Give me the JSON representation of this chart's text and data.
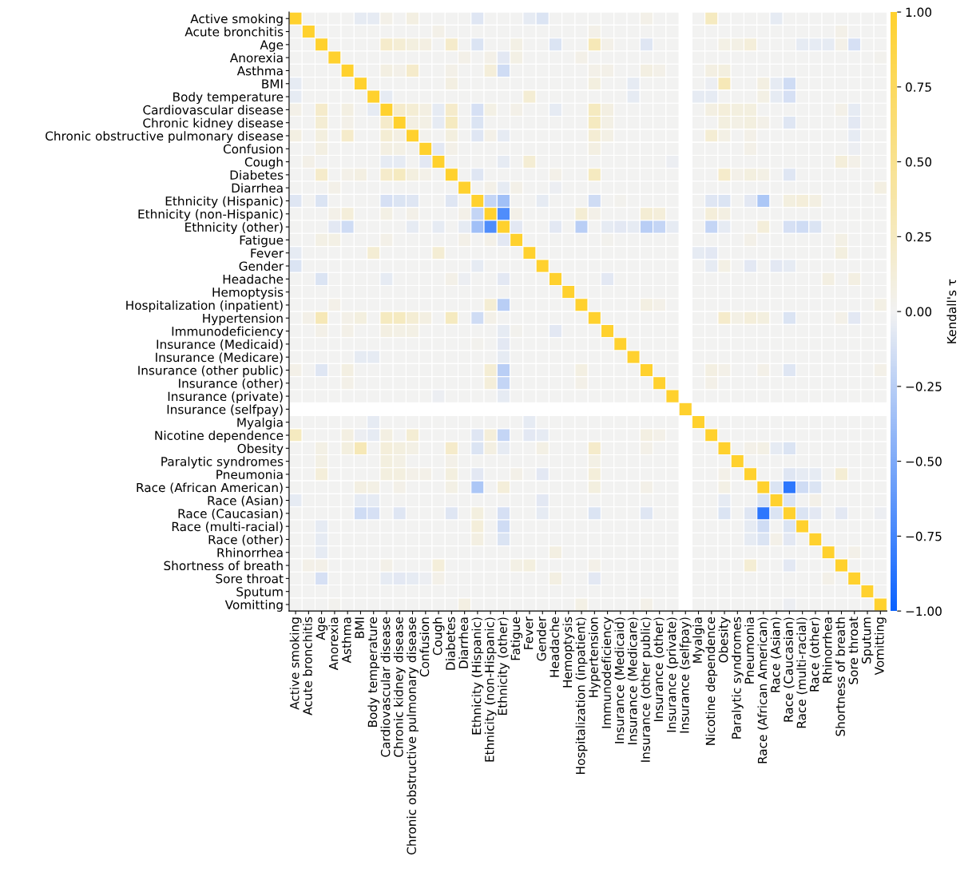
{
  "chart_data": {
    "type": "heatmap",
    "categories": [
      "Active smoking",
      "Acute bronchitis",
      "Age",
      "Anorexia",
      "Asthma",
      "BMI",
      "Body temperature",
      "Cardiovascular disease",
      "Chronic kidney disease",
      "Chronic obstructive pulmonary disease",
      "Confusion",
      "Cough",
      "Diabetes",
      "Diarrhea",
      "Ethnicity (Hispanic)",
      "Ethnicity (non-Hispanic)",
      "Ethnicity (other)",
      "Fatigue",
      "Fever",
      "Gender",
      "Headache",
      "Hemoptysis",
      "Hospitalization (inpatient)",
      "Hypertension",
      "Immunodeficiency",
      "Insurance (Medicaid)",
      "Insurance (Medicare)",
      "Insurance (other public)",
      "Insurance (other)",
      "Insurance (private)",
      "Insurance (selfpay)",
      "Myalgia",
      "Nicotine dependence",
      "Obesity",
      "Paralytic syndromes",
      "Pneumonia",
      "Race (African American)",
      "Race (Asian)",
      "Race (Caucasian)",
      "Race (multi-racial)",
      "Race (other)",
      "Rhinorrhea",
      "Shortness of breath",
      "Sore throat",
      "Sputum",
      "Vomitting"
    ],
    "y_categories": [
      "Active smoking",
      "Acute bronchitis",
      "Age",
      "Anorexia",
      "Asthma",
      "BMI",
      "Body temperature",
      "Cardiovascular disease",
      "Chronic kidney disease",
      "Chronic obstructive pulmonary disease",
      "Confusion",
      "Cough",
      "Diabetes",
      "Diarrhea",
      "Ethnicity (Hispanic)",
      "Ethnicity (non-Hispanic)",
      "Ethnicity (other)",
      "Fatigue",
      "Fever",
      "Gender",
      "Headache",
      "Hemoptysis",
      "Hospitalization (inpatient)",
      "Hypertension",
      "Immunodeficiency",
      "Insurance (Medicaid)",
      "Insurance (Medicare)",
      "Insurance (other public)",
      "Insurance (other)",
      "Insurance (private)",
      "Insurance (selfpay)",
      "Myalgia",
      "Nicotine dependence",
      "Obesity",
      "Paralytic syndromes",
      "Pneumonia",
      "Race (African American)",
      "Race (Asian)",
      "Race (Caucasian)",
      "Race (multi-racial)",
      "Race (other)",
      "Rhinorrhea",
      "Shortness of breath",
      "Sore throat",
      "Sputum",
      "Vomitting"
    ],
    "cells": [
      [
        1,
        0,
        0,
        0,
        0,
        -0.05,
        -0.05,
        0.05,
        0,
        0.08,
        0,
        0,
        0,
        0,
        -0.08,
        0,
        0,
        0,
        -0.05,
        -0.1,
        0,
        0,
        0,
        0,
        0,
        0,
        0,
        0.05,
        0,
        0,
        null,
        0,
        0.25,
        0,
        0,
        0,
        0,
        -0.05,
        0,
        0,
        0,
        0,
        0,
        0,
        0,
        0
      ],
      [
        0,
        1,
        0,
        0,
        0,
        0,
        0,
        0,
        0,
        0,
        0,
        0.05,
        0,
        0,
        0,
        0,
        0,
        0,
        0,
        0,
        0,
        0,
        0,
        0.05,
        0,
        0,
        0,
        0,
        0,
        0,
        null,
        0,
        0,
        0,
        0,
        0,
        0,
        0,
        0,
        0,
        0,
        0,
        0.05,
        0,
        0,
        0
      ],
      [
        0,
        0,
        1,
        0,
        0,
        0,
        0,
        0.2,
        0.15,
        0.1,
        0.08,
        0,
        0.2,
        0,
        -0.1,
        0,
        0,
        0.07,
        0,
        0,
        -0.1,
        0,
        0,
        0.3,
        0.05,
        0,
        0,
        -0.08,
        0,
        0,
        null,
        0,
        0,
        0.07,
        0.07,
        0.12,
        0,
        0,
        0,
        -0.05,
        -0.05,
        -0.05,
        0.05,
        -0.12,
        0,
        0
      ],
      [
        0,
        0,
        0,
        1,
        0,
        0,
        0,
        0,
        0,
        0,
        0,
        0,
        0,
        0.05,
        0,
        0.05,
        -0.07,
        0.07,
        0,
        0,
        0,
        0,
        0.05,
        0,
        0,
        0,
        0,
        0,
        0,
        0,
        null,
        0,
        0,
        0,
        0,
        0,
        0,
        0,
        0,
        0,
        0,
        0,
        0,
        0,
        0,
        0.03
      ],
      [
        0,
        0,
        0,
        0,
        1,
        0,
        0,
        0.08,
        0.05,
        0.2,
        0,
        0,
        0.05,
        0,
        0,
        0.12,
        -0.15,
        0,
        0,
        0,
        0,
        0,
        0,
        0.05,
        0.05,
        0,
        0,
        0.08,
        0.05,
        0,
        null,
        0,
        0.08,
        0.1,
        0,
        0,
        0,
        0,
        0,
        0,
        0,
        0,
        0,
        0,
        0,
        0
      ],
      [
        -0.05,
        0,
        0,
        0,
        0,
        1,
        0,
        0,
        0,
        0,
        0,
        0,
        0.08,
        0,
        0,
        0,
        0,
        0,
        0,
        0,
        0,
        0,
        0,
        0.1,
        0,
        0,
        -0.05,
        0,
        0,
        0,
        null,
        0,
        -0.03,
        0.3,
        0,
        0,
        0.08,
        -0.05,
        -0.15,
        0,
        0,
        0,
        0,
        0,
        0,
        0
      ],
      [
        -0.05,
        0,
        0,
        0,
        0,
        0,
        1,
        -0.05,
        0,
        0,
        0,
        0,
        0,
        0,
        0,
        0,
        0,
        0,
        0.15,
        0,
        0,
        0,
        0,
        0,
        0,
        0,
        -0.05,
        0,
        0,
        0,
        null,
        -0.05,
        -0.05,
        0,
        0,
        0,
        0.07,
        -0.05,
        -0.12,
        0,
        0,
        0,
        0,
        0,
        0,
        0
      ],
      [
        0.05,
        0,
        0.2,
        0,
        0.08,
        0,
        -0.05,
        1,
        0.2,
        0.15,
        0.08,
        -0.05,
        0.2,
        0,
        -0.12,
        0.07,
        0,
        0.05,
        0,
        0,
        -0.05,
        0,
        0,
        0.25,
        0.08,
        0,
        0,
        0,
        0,
        0,
        null,
        0,
        0.08,
        0.12,
        0.1,
        0.1,
        0,
        0,
        0,
        0,
        0,
        0,
        0.05,
        -0.05,
        0,
        0
      ],
      [
        0,
        0,
        0.15,
        0,
        0.05,
        0,
        0,
        0.2,
        1,
        0.08,
        0.07,
        -0.05,
        0.25,
        0,
        -0.1,
        0,
        0,
        0,
        0,
        0,
        0,
        0,
        0,
        0.25,
        0.07,
        0,
        0,
        0,
        0,
        0,
        null,
        0,
        0,
        0.1,
        0.07,
        0.1,
        0.05,
        0,
        -0.08,
        0,
        0,
        0,
        0,
        -0.07,
        0,
        0
      ],
      [
        0.08,
        0,
        0.1,
        0,
        0.2,
        0,
        0,
        0.15,
        0.08,
        1,
        0.03,
        0,
        0.1,
        0,
        -0.08,
        0.05,
        -0.05,
        0,
        0,
        0,
        0,
        0,
        0,
        0.15,
        0.07,
        0,
        0,
        0,
        0,
        0,
        null,
        0,
        0.15,
        0.07,
        0,
        0.05,
        0,
        0,
        0,
        0,
        0,
        0,
        0,
        -0.05,
        0,
        0
      ],
      [
        0,
        0,
        0.08,
        0,
        0,
        0,
        0,
        0.08,
        0.07,
        0.03,
        1,
        -0.07,
        0.05,
        0,
        0,
        0,
        0,
        0,
        0,
        0,
        0,
        0,
        0,
        0.08,
        0,
        0,
        0,
        0,
        0,
        0,
        null,
        0,
        0,
        0,
        0,
        0.05,
        0,
        0,
        0,
        0,
        0,
        0,
        0,
        -0.03,
        0,
        0
      ],
      [
        0,
        0.05,
        0,
        0,
        0,
        0,
        0,
        -0.05,
        -0.05,
        0,
        -0.07,
        1,
        0,
        0,
        0,
        0,
        -0.05,
        0,
        0.15,
        0,
        0,
        0,
        0,
        0,
        0,
        0,
        0,
        0,
        0,
        -0.03,
        null,
        0,
        0,
        0,
        0,
        0,
        0,
        0,
        0,
        0,
        0,
        0,
        0.12,
        0.05,
        0,
        0
      ],
      [
        0,
        0,
        0.2,
        0,
        0.05,
        0.08,
        0,
        0.2,
        0.25,
        0.1,
        0.05,
        0,
        1,
        0,
        -0.08,
        0,
        0,
        0,
        0,
        0,
        0.05,
        0,
        0,
        0.25,
        0,
        0,
        0,
        0,
        0,
        0,
        null,
        0,
        0,
        0.2,
        0.05,
        0.1,
        0.07,
        0,
        -0.08,
        0,
        0,
        0,
        0,
        0,
        0,
        0
      ],
      [
        0,
        0,
        0,
        0.05,
        0,
        0,
        0,
        0,
        0,
        0,
        0,
        0,
        0,
        1,
        0,
        0.05,
        -0.05,
        0.05,
        0,
        0,
        -0.03,
        0,
        0,
        0,
        0,
        0,
        0,
        0,
        0,
        0,
        null,
        0,
        0,
        0,
        0,
        0,
        0,
        0,
        0,
        0,
        0,
        0,
        0,
        0,
        0,
        0.08
      ],
      [
        -0.08,
        0,
        -0.1,
        0,
        0,
        0,
        0,
        -0.12,
        -0.1,
        -0.08,
        0,
        0,
        -0.08,
        0,
        1,
        -0.2,
        -0.35,
        0,
        0,
        -0.05,
        0,
        0,
        0,
        -0.15,
        0,
        0.03,
        0,
        0,
        0,
        0,
        null,
        0,
        -0.08,
        -0.1,
        0,
        -0.07,
        -0.3,
        0,
        0.1,
        0.12,
        0.08,
        0,
        0,
        0,
        0,
        0
      ],
      [
        0,
        0,
        0,
        0.05,
        0.12,
        0,
        0,
        0.07,
        0,
        0.05,
        0,
        0,
        0,
        0.05,
        -0.2,
        1,
        -0.7,
        0.05,
        0,
        0,
        0,
        0,
        0.15,
        0.05,
        0,
        0,
        0,
        0.15,
        0.12,
        0,
        null,
        0,
        0.12,
        0.08,
        0,
        0,
        0,
        0,
        0,
        0,
        0,
        0,
        0,
        0,
        0,
        0
      ],
      [
        0,
        0,
        0,
        -0.07,
        -0.15,
        0,
        0,
        0,
        0,
        -0.05,
        0,
        -0.05,
        0,
        -0.05,
        -0.35,
        -0.7,
        1,
        -0.07,
        0,
        0,
        -0.07,
        0,
        -0.25,
        0,
        -0.05,
        -0.07,
        -0.05,
        -0.25,
        -0.2,
        -0.05,
        null,
        0,
        -0.2,
        -0.05,
        0,
        0,
        0.12,
        0,
        -0.12,
        -0.15,
        -0.1,
        0,
        0,
        0,
        0,
        0
      ],
      [
        0,
        0,
        0.07,
        0.07,
        0,
        0,
        0,
        0.05,
        0,
        0,
        0,
        0,
        0,
        0.05,
        0,
        0.05,
        -0.07,
        1,
        0,
        0,
        0,
        0,
        0,
        0,
        0.03,
        0,
        0,
        0,
        0,
        0,
        null,
        0,
        0,
        0,
        0,
        0.05,
        0,
        0,
        0,
        0,
        0,
        0,
        0.07,
        0,
        0,
        0
      ],
      [
        -0.05,
        0,
        0,
        0,
        0,
        0,
        0.15,
        0,
        0,
        0,
        0,
        0.15,
        0,
        0,
        0,
        0,
        0,
        0,
        1,
        0,
        0,
        0,
        0,
        0,
        0,
        0,
        0,
        0,
        0,
        0,
        null,
        -0.05,
        -0.07,
        0,
        0,
        0,
        0,
        0,
        0,
        0,
        0,
        0,
        0.1,
        0,
        0,
        0
      ],
      [
        -0.1,
        0,
        0,
        0,
        0,
        0,
        0,
        0,
        0,
        0,
        0,
        0,
        0,
        0,
        -0.05,
        0,
        0,
        0,
        0,
        1,
        0,
        0,
        0,
        0,
        0,
        0,
        0,
        0,
        0,
        0,
        null,
        0,
        -0.05,
        0.07,
        0,
        -0.07,
        0,
        -0.07,
        -0.05,
        0,
        0,
        0,
        0,
        0,
        0,
        0
      ],
      [
        0,
        0,
        -0.1,
        0,
        0,
        0,
        0,
        -0.05,
        0,
        0,
        0,
        0,
        0.05,
        -0.03,
        0,
        0,
        -0.07,
        0,
        0,
        0,
        1,
        0,
        0,
        0,
        -0.07,
        0,
        0,
        0,
        0,
        0,
        null,
        0,
        0,
        0,
        0,
        0,
        0,
        0,
        0,
        0,
        0,
        0.08,
        0,
        0.08,
        0,
        0
      ],
      [
        0,
        0,
        0,
        0,
        0,
        0,
        0,
        0,
        0,
        0,
        0,
        0,
        0,
        0,
        0,
        0,
        0,
        0,
        0,
        0,
        0,
        1,
        0,
        0,
        0,
        0,
        0,
        0,
        0,
        0,
        null,
        0,
        0,
        0,
        0,
        0,
        0,
        0,
        0,
        0,
        0,
        0,
        0,
        0,
        0,
        0
      ],
      [
        0,
        0,
        0,
        0.05,
        0,
        0,
        0,
        0,
        0,
        0,
        0,
        0,
        0,
        0,
        0,
        0.15,
        -0.25,
        0,
        0,
        0,
        0,
        0,
        1,
        0,
        0,
        0,
        0,
        0.08,
        0.05,
        0,
        null,
        0,
        0,
        0,
        0,
        0,
        0,
        0,
        0,
        0,
        0,
        0,
        0,
        0,
        0,
        0.07
      ],
      [
        0,
        0.05,
        0.3,
        0,
        0.05,
        0.1,
        0,
        0.25,
        0.25,
        0.15,
        0.08,
        0,
        0.25,
        0,
        -0.15,
        0.05,
        0,
        0,
        0,
        0,
        0,
        0,
        0,
        1,
        0,
        0,
        0,
        0,
        0,
        0,
        null,
        0,
        0,
        0.2,
        0.07,
        0.12,
        0.1,
        0,
        -0.1,
        0,
        0,
        0,
        0.05,
        -0.07,
        0,
        0
      ],
      [
        0,
        0,
        0.05,
        0,
        0.05,
        0,
        0,
        0.08,
        0.07,
        0.07,
        0,
        0,
        0,
        0,
        0,
        0,
        -0.05,
        0.03,
        0,
        0,
        -0.07,
        0,
        0,
        0,
        1,
        0,
        0,
        0,
        0,
        0,
        null,
        0,
        0,
        0,
        0,
        0,
        0,
        0,
        0,
        0,
        0,
        0,
        0,
        0,
        0,
        0
      ],
      [
        0,
        0,
        0,
        0,
        0,
        0,
        0,
        0,
        0,
        0,
        0,
        0,
        0,
        0,
        0.03,
        0,
        -0.07,
        0,
        0,
        0,
        0,
        0,
        0,
        0,
        0,
        1,
        0,
        0,
        0,
        0,
        null,
        0,
        0,
        0,
        0,
        0,
        0,
        0,
        0,
        0,
        0,
        0,
        0,
        0,
        0,
        0
      ],
      [
        0,
        0,
        0,
        0,
        0,
        -0.05,
        -0.05,
        0,
        0,
        0,
        0,
        0,
        0,
        0,
        0,
        0,
        -0.05,
        0,
        0,
        0,
        0,
        0,
        0,
        0,
        0,
        0,
        1,
        0,
        0,
        0,
        null,
        0,
        0,
        0,
        0,
        0,
        0,
        0,
        0,
        0,
        0,
        0,
        0,
        0,
        0,
        0
      ],
      [
        0.05,
        0,
        -0.08,
        0,
        0.08,
        0,
        0,
        0,
        0,
        0,
        0,
        0,
        0,
        0,
        0,
        0.15,
        -0.25,
        0,
        0,
        0,
        0,
        0,
        0.08,
        0,
        0,
        0,
        0,
        1,
        0,
        0,
        null,
        0,
        0.08,
        0.05,
        0,
        0,
        0.05,
        0,
        -0.08,
        0,
        0,
        0,
        0,
        0,
        0,
        0.05
      ],
      [
        0,
        0,
        0,
        0,
        0.05,
        0,
        0,
        0,
        0,
        0,
        0,
        0,
        0,
        0,
        0,
        0.12,
        -0.2,
        0,
        0,
        0,
        0,
        0,
        0.05,
        0,
        0,
        0,
        0,
        0,
        1,
        0,
        null,
        0,
        0.05,
        0,
        0,
        0,
        0,
        0,
        0,
        0,
        0,
        0,
        0,
        0,
        0,
        0
      ],
      [
        0,
        0,
        0,
        0,
        0,
        0,
        0,
        0,
        0,
        0,
        0,
        -0.03,
        0,
        0,
        0,
        0,
        -0.05,
        0,
        0,
        0,
        0,
        0,
        0,
        0,
        0,
        0,
        0,
        0,
        0,
        1,
        null,
        0,
        0,
        0,
        0,
        0,
        0,
        0,
        0,
        0,
        0,
        0,
        0,
        0,
        0,
        0
      ],
      [
        null,
        null,
        null,
        null,
        null,
        null,
        null,
        null,
        null,
        null,
        null,
        null,
        null,
        null,
        null,
        null,
        null,
        null,
        null,
        null,
        null,
        null,
        null,
        null,
        null,
        null,
        null,
        null,
        null,
        null,
        1,
        null,
        null,
        null,
        null,
        null,
        null,
        null,
        null,
        null,
        null,
        null,
        null,
        null,
        null,
        null
      ],
      [
        0,
        0,
        0,
        0,
        0,
        0,
        -0.05,
        0,
        0,
        0,
        0,
        0,
        0,
        0,
        0,
        0,
        0,
        0,
        -0.05,
        0,
        0,
        0,
        0,
        0,
        0,
        0,
        0,
        0,
        0,
        0,
        null,
        1,
        0,
        0,
        0,
        0,
        0,
        0,
        0,
        0,
        0,
        0,
        0,
        0,
        0,
        0
      ],
      [
        0.25,
        0,
        0,
        0,
        0.08,
        -0.03,
        -0.05,
        0.08,
        0,
        0.15,
        0,
        0,
        0,
        0,
        -0.08,
        0.12,
        -0.2,
        0,
        -0.07,
        -0.05,
        0,
        0,
        0,
        0,
        0,
        0,
        0,
        0.08,
        0.05,
        0,
        null,
        0,
        1,
        0,
        0,
        0,
        0,
        0,
        0,
        0,
        0,
        0,
        0,
        0,
        0,
        0
      ],
      [
        0,
        0,
        0.07,
        0,
        0.1,
        0.3,
        0,
        0.12,
        0.1,
        0.07,
        0,
        0,
        0.2,
        0,
        -0.1,
        0.08,
        -0.05,
        0,
        0,
        0.07,
        0,
        0,
        0,
        0.2,
        0,
        0,
        0,
        0.05,
        0,
        0,
        null,
        0,
        0,
        1,
        0,
        0.05,
        0.07,
        -0.05,
        -0.1,
        0,
        0,
        0,
        0,
        0,
        0,
        0
      ],
      [
        0,
        0,
        0.07,
        0,
        0,
        0,
        0,
        0.1,
        0.07,
        0,
        0,
        0,
        0.05,
        0,
        0,
        0,
        0,
        0,
        0,
        0,
        0,
        0,
        0,
        0.07,
        0,
        0,
        0,
        0,
        0,
        0,
        null,
        0,
        0,
        0,
        1,
        0,
        0,
        0,
        0,
        0,
        0,
        0,
        0,
        0,
        0,
        0
      ],
      [
        0,
        0,
        0.12,
        0,
        0,
        0,
        0,
        0.1,
        0.1,
        0.05,
        0.05,
        0,
        0.1,
        0,
        -0.07,
        0,
        0,
        0.05,
        0,
        -0.07,
        0,
        0,
        0,
        0.12,
        0,
        0,
        0,
        0,
        0,
        0,
        null,
        0,
        0,
        0.05,
        0,
        1,
        0,
        0,
        -0.08,
        -0.05,
        -0.05,
        0,
        0.15,
        0,
        0,
        0
      ],
      [
        0,
        0,
        0,
        0,
        0,
        0.08,
        0.07,
        0,
        0.05,
        0,
        0,
        0,
        0.07,
        0,
        -0.3,
        0,
        0.12,
        0,
        0,
        0,
        0,
        0,
        0,
        0.1,
        0,
        0,
        0,
        0.05,
        0,
        0,
        null,
        0,
        0,
        0.07,
        0,
        0,
        1,
        -0.1,
        -0.85,
        -0.15,
        -0.1,
        0,
        0,
        0,
        0,
        0
      ],
      [
        -0.05,
        0,
        0,
        0,
        0,
        -0.05,
        -0.05,
        0,
        0,
        0,
        0,
        0,
        0,
        0,
        0,
        0,
        0,
        0,
        0,
        -0.07,
        0,
        0,
        0,
        0,
        0,
        0,
        0,
        0,
        0,
        0,
        null,
        0,
        0,
        -0.05,
        0,
        0,
        -0.1,
        1,
        -0.1,
        0,
        0.05,
        0,
        0,
        0,
        0,
        0
      ],
      [
        0,
        0,
        0,
        0,
        0,
        -0.15,
        -0.12,
        0,
        -0.08,
        0,
        0,
        0,
        -0.08,
        0,
        0.1,
        0,
        -0.12,
        0,
        0,
        -0.05,
        0,
        0,
        0,
        -0.1,
        0,
        0,
        0,
        -0.08,
        0,
        0,
        null,
        0,
        0,
        -0.1,
        0,
        -0.08,
        -0.85,
        -0.1,
        1,
        -0.1,
        -0.07,
        0,
        -0.07,
        0,
        0,
        -0.03
      ],
      [
        0,
        0,
        -0.05,
        0,
        0,
        0,
        0,
        0,
        0,
        0,
        0,
        0,
        0,
        0,
        0.12,
        0,
        -0.15,
        0,
        0,
        0,
        0,
        0,
        0,
        0,
        0,
        0,
        0,
        0,
        0,
        0,
        null,
        0,
        0,
        0,
        0,
        -0.05,
        -0.15,
        0,
        -0.1,
        1,
        0,
        0,
        0,
        0,
        0,
        0
      ],
      [
        0,
        0,
        -0.05,
        0,
        0,
        0,
        0,
        0,
        0,
        0,
        0,
        0,
        0,
        0,
        0.08,
        0,
        -0.1,
        0,
        0,
        0,
        0,
        0,
        0,
        0,
        0,
        0,
        0,
        0,
        0,
        0,
        null,
        0,
        0,
        0,
        0,
        -0.05,
        -0.1,
        0.05,
        -0.07,
        0,
        1,
        0,
        0,
        0,
        0,
        0
      ],
      [
        0,
        0,
        -0.05,
        0,
        0,
        0,
        0,
        0,
        0,
        0,
        0,
        0,
        0,
        0,
        0,
        0,
        0,
        0,
        0,
        0,
        0.08,
        0,
        0,
        0,
        0,
        0,
        0,
        0,
        0,
        0,
        null,
        0,
        0,
        0,
        0,
        0,
        0,
        0,
        0,
        0,
        0,
        1,
        0,
        0.05,
        0,
        0
      ],
      [
        0,
        0.05,
        0.05,
        0,
        0,
        0,
        0,
        0.05,
        0,
        0,
        0,
        0.12,
        0,
        0,
        0,
        0,
        0,
        0.07,
        0.1,
        0,
        0,
        0,
        0,
        0.05,
        0,
        0,
        0,
        0,
        0,
        0,
        null,
        0,
        0,
        0,
        0,
        0.15,
        0,
        0,
        -0.07,
        0,
        0,
        0,
        1,
        0,
        0,
        0
      ],
      [
        0,
        0,
        -0.12,
        0,
        0,
        0,
        0,
        -0.05,
        -0.07,
        -0.05,
        -0.03,
        0.05,
        0,
        0,
        0,
        0,
        0,
        0,
        0,
        0,
        0.08,
        0,
        0,
        -0.07,
        0,
        0,
        0,
        0,
        0,
        0,
        null,
        0,
        0,
        0,
        0,
        0,
        0,
        0,
        0,
        0,
        0,
        0.05,
        0,
        1,
        0,
        0
      ],
      [
        0,
        0,
        0,
        0,
        0,
        0,
        0,
        0,
        0,
        0,
        0,
        0,
        0,
        0,
        0,
        0,
        0,
        0,
        0,
        0,
        0,
        0,
        0,
        0,
        0,
        0,
        0,
        0,
        0,
        0,
        null,
        0,
        0,
        0,
        0,
        0,
        0,
        0,
        0,
        0,
        0,
        0,
        0,
        0,
        1,
        0
      ],
      [
        0,
        0,
        0,
        0.03,
        0,
        0,
        0,
        0,
        0,
        0,
        0,
        0,
        0,
        0.08,
        0,
        0,
        0,
        0,
        0,
        0,
        0,
        0,
        0.07,
        0,
        0,
        0,
        0,
        0.05,
        0,
        0,
        null,
        0,
        0,
        0,
        0,
        0,
        0,
        0,
        -0.03,
        0,
        0,
        0,
        0,
        0,
        0,
        1
      ]
    ],
    "clim": [
      -1,
      1
    ],
    "cticks": [
      {
        "value": -1,
        "label": "−1.00"
      },
      {
        "value": -0.75,
        "label": "−0.75"
      },
      {
        "value": -0.5,
        "label": "−0.50"
      },
      {
        "value": -0.25,
        "label": "−0.25"
      },
      {
        "value": 0,
        "label": "0.00"
      },
      {
        "value": 0.25,
        "label": "0.25"
      },
      {
        "value": 0.5,
        "label": "0.50"
      },
      {
        "value": 0.75,
        "label": "0.75"
      },
      {
        "value": 1,
        "label": "1.00"
      }
    ],
    "clabel": "Kendall's τ"
  }
}
